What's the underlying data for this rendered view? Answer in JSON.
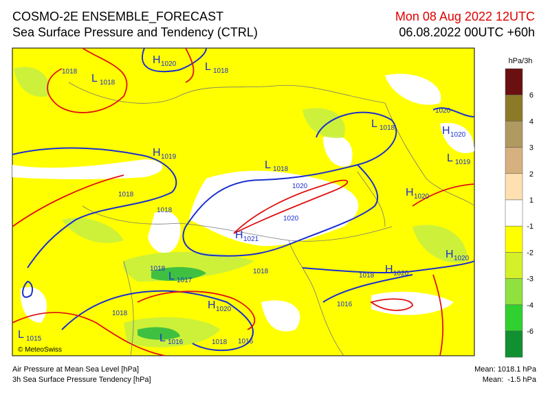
{
  "header": {
    "title": "COSMO-2E ENSEMBLE_FORECAST",
    "subtitle": "Sea Surface Pressure and Tendency (CTRL)",
    "valid_time": "Mon 08 Aug 2022 12UTC",
    "run": "06.08.2022 00UTC +60h"
  },
  "legend": {
    "unit": "hPa/3h",
    "labels": [
      6,
      4,
      3,
      2,
      1,
      -1,
      -2,
      -3,
      -4,
      -6
    ]
  },
  "systems": [
    {
      "kind": "H",
      "value": "1020"
    },
    {
      "kind": "L",
      "value": "1018"
    },
    {
      "kind": "L",
      "value": "1018"
    },
    {
      "kind": "H",
      "value": "1019"
    },
    {
      "kind": "L",
      "value": "1018"
    },
    {
      "kind": "L",
      "value": "1018"
    },
    {
      "kind": "H",
      "value": "1020"
    },
    {
      "kind": "L",
      "value": "1019"
    },
    {
      "kind": "H",
      "value": "1020"
    },
    {
      "kind": "H",
      "value": "1021"
    },
    {
      "kind": "H",
      "value": "1020"
    },
    {
      "kind": "H",
      "value": "1020"
    },
    {
      "kind": "L",
      "value": "1017"
    },
    {
      "kind": "H",
      "value": "1020"
    },
    {
      "kind": "L",
      "value": "1015"
    },
    {
      "kind": "L",
      "value": "1016"
    }
  ],
  "isobar_labels": [
    "1018",
    "1018",
    "1018",
    "1020",
    "1020",
    "1018",
    "1018",
    "1018",
    "1018",
    "1016",
    "1018",
    "1016",
    "1020"
  ],
  "credit": "© MeteoSwiss",
  "footer": {
    "line1": "Air Pressure at Mean Sea Level [hPa]",
    "line2": "3h Sea Surface Pressure Tendency [hPa]",
    "mean1": "Mean: 1018.1 hPa",
    "mean2": "Mean:  -1.5 hPa"
  }
}
